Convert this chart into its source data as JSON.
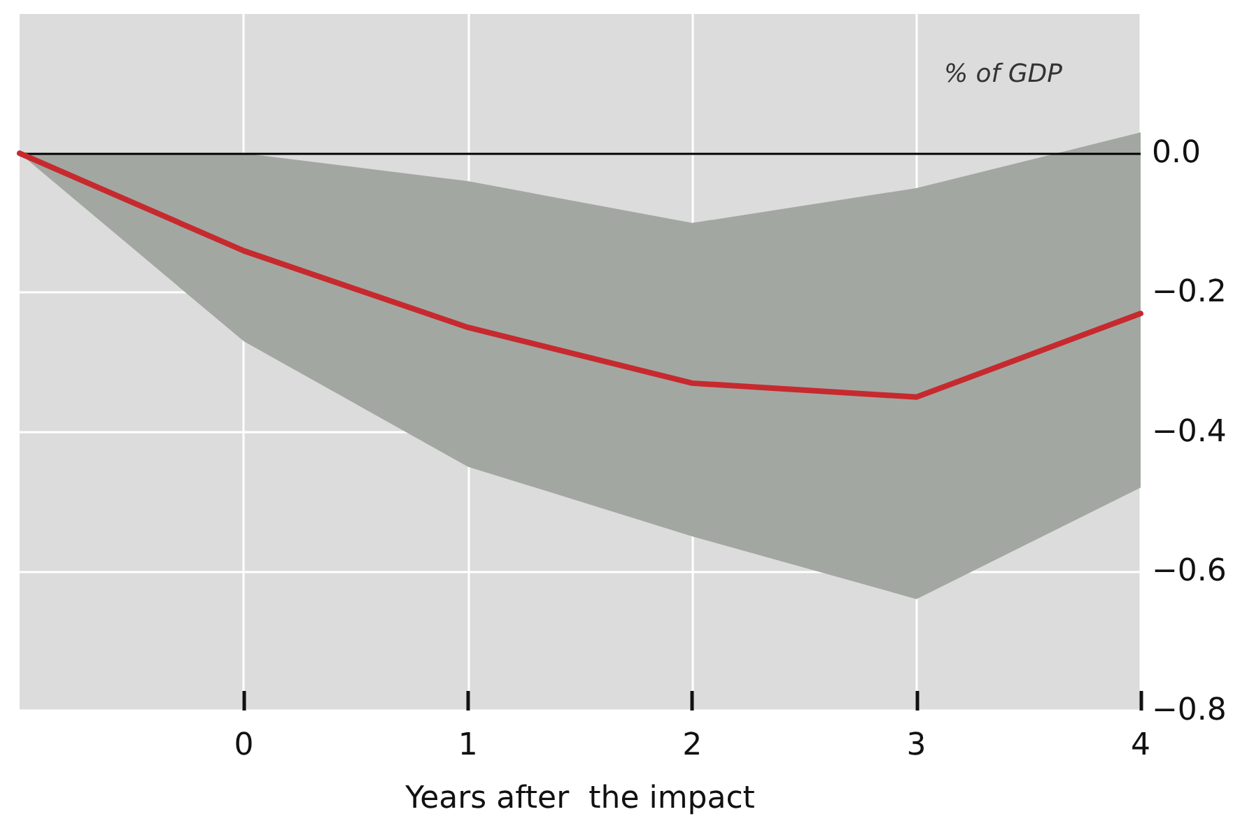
{
  "chart_data": {
    "type": "line",
    "xlabel": "Years after  the impact",
    "ylabel": "% of GDP",
    "x": [
      -1,
      0,
      1,
      2,
      3,
      4
    ],
    "series": [
      {
        "color": "#c62a2e",
        "values": [
          0,
          -0.14,
          -0.25,
          -0.33,
          -0.35,
          -0.23
        ],
        "lower": [
          0,
          -0.27,
          -0.45,
          -0.55,
          -0.64,
          -0.48
        ],
        "upper": [
          0,
          0,
          -0.04,
          -0.1,
          -0.05,
          0.03
        ]
      }
    ],
    "xlim": [
      -1,
      4
    ],
    "xticks": [
      0,
      1,
      2,
      3,
      4
    ],
    "ylim": [
      -0.8,
      0.2
    ],
    "yticks": [
      {
        "value": 0,
        "label": "0.0"
      },
      {
        "value": -0.2,
        "label": "−0.2"
      },
      {
        "value": -0.4,
        "label": "−0.4"
      },
      {
        "value": -0.6,
        "label": "−0.6"
      },
      {
        "value": -0.8,
        "label": "−0.8"
      }
    ],
    "ref_lines": [
      {
        "axis": "y",
        "value": 0,
        "color": "#000000"
      }
    ],
    "grid": true,
    "marker": "none",
    "line_style": "solid"
  }
}
